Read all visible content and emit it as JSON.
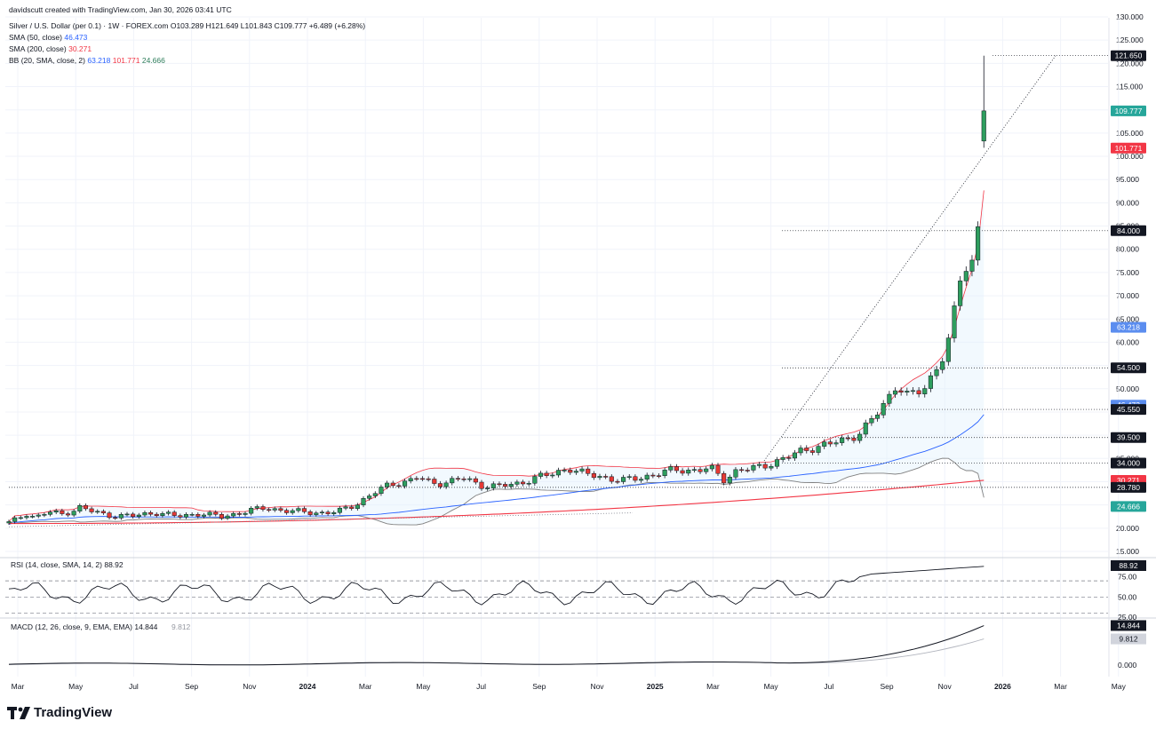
{
  "header": {
    "attribution": "davidscutt created with TradingView.com, Jan 30, 2026 03:41 UTC",
    "symbol_line": "Silver / U.S. Dollar (per 0.1) · 1W · FOREX.com  O103.289  H121.649  L101.843  C109.777  +6.489 (+6.28%)",
    "sma50_label": "SMA (50, close)",
    "sma50_value": "46.473",
    "sma200_label": "SMA (200, close)",
    "sma200_value": "30.271",
    "bb_label": "BB (20, SMA, close, 2)",
    "bb_basis": "63.218",
    "bb_upper": "101.771",
    "bb_lower": "24.666"
  },
  "footer": {
    "brand": "TradingView"
  },
  "chart_data": [
    {
      "type": "candlestick",
      "instrument": "Silver / U.S. Dollar (per 0.1)",
      "interval": "1W",
      "ylim": [
        15,
        130
      ],
      "y_ticks": [
        "15.000",
        "20.000",
        "25.000",
        "30.000",
        "35.000",
        "40.000",
        "45.000",
        "50.000",
        "55.000",
        "60.000",
        "65.000",
        "70.000",
        "75.000",
        "80.000",
        "85.000",
        "90.000",
        "95.000",
        "100.000",
        "105.000",
        "110.000",
        "115.000",
        "120.000",
        "125.000",
        "130.000"
      ],
      "x_ticks": [
        "Mar",
        "May",
        "Jul",
        "Sep",
        "Nov",
        "2024",
        "Mar",
        "May",
        "Jul",
        "Sep",
        "Nov",
        "2025",
        "Mar",
        "May",
        "Jul",
        "Sep",
        "Nov",
        "2026",
        "Mar",
        "May"
      ],
      "series": [
        {
          "name": "SMA (50, close)",
          "color": "#2962ff"
        },
        {
          "name": "SMA (200, close)",
          "color": "#f23645"
        },
        {
          "name": "BB upper",
          "color": "#f23645"
        },
        {
          "name": "BB basis",
          "color": "#2962ff"
        },
        {
          "name": "BB lower",
          "color": "#808080"
        }
      ],
      "price_labels": [
        {
          "value": "121.650",
          "color": "#131722"
        },
        {
          "value": "109.777",
          "color": "#26a69a"
        },
        {
          "value": "101.771",
          "color": "#f23645"
        },
        {
          "value": "84.000",
          "color": "#131722"
        },
        {
          "value": "63.218",
          "color": "#5b8def"
        },
        {
          "value": "54.500",
          "color": "#131722"
        },
        {
          "value": "46.473",
          "color": "#5b8def"
        },
        {
          "value": "45.550",
          "color": "#131722"
        },
        {
          "value": "39.500",
          "color": "#131722"
        },
        {
          "value": "34.000",
          "color": "#131722"
        },
        {
          "value": "30.271",
          "color": "#f23645"
        },
        {
          "value": "28.780",
          "color": "#131722"
        },
        {
          "value": "24.666",
          "color": "#26a69a"
        }
      ],
      "horizontal_levels": [
        121.65,
        84.0,
        54.5,
        45.55,
        39.5,
        34.0,
        28.78
      ]
    },
    {
      "type": "line",
      "label": "RSI (14, close, SMA, 14, 2)",
      "value": "88.92",
      "ylim": [
        25,
        100
      ],
      "y_ticks": [
        "25.00",
        "50.00",
        "75.00"
      ],
      "levels": [
        30,
        50,
        70
      ]
    },
    {
      "type": "line",
      "label": "MACD (12, 26, close, 9, EMA, EMA)",
      "macd": "14.844",
      "signal": "9.812",
      "y_ticks": [
        "0.000"
      ]
    }
  ],
  "colors": {
    "up": "#26a69a",
    "down": "#ef5350",
    "grid": "#f0f3fa",
    "axis_text": "#131722"
  }
}
